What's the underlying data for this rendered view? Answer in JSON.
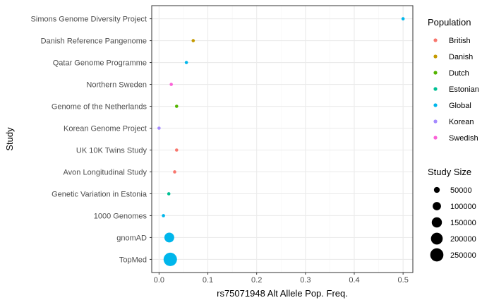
{
  "chart_data": {
    "type": "scatter",
    "xlabel": "rs75071948 Alt Allele Pop. Freq.",
    "ylabel": "Study",
    "xlim": [
      -0.015,
      0.52
    ],
    "x_ticks": [
      "0.0",
      "0.1",
      "0.2",
      "0.3",
      "0.4",
      "0.5"
    ],
    "x_tick_values": [
      0.0,
      0.1,
      0.2,
      0.3,
      0.4,
      0.5
    ],
    "grid": true,
    "legend_position": "right",
    "categories": [
      "Simons Genome Diversity Project",
      "Danish Reference Pangenome",
      "Qatar Genome Programme",
      "Northern Sweden",
      "Genome of the Netherlands",
      "Korean Genome Project",
      "UK 10K Twins Study",
      "Avon Longitudinal Study",
      "Genetic Variation in Estonia",
      "1000 Genomes",
      "gnomAD",
      "TopMed"
    ],
    "points": [
      {
        "study": "Simons Genome Diversity Project",
        "freq": 0.5,
        "population": "Global",
        "size": 300
      },
      {
        "study": "Danish Reference Pangenome",
        "freq": 0.07,
        "population": "Danish",
        "size": 2000
      },
      {
        "study": "Qatar Genome Programme",
        "freq": 0.056,
        "population": "Global",
        "size": 1500
      },
      {
        "study": "Northern Sweden",
        "freq": 0.025,
        "population": "Swedish",
        "size": 2000
      },
      {
        "study": "Genome of the Netherlands",
        "freq": 0.036,
        "population": "Dutch",
        "size": 5000
      },
      {
        "study": "Korean Genome Project",
        "freq": 0.0,
        "population": "Korean",
        "size": 3000
      },
      {
        "study": "UK 10K Twins Study",
        "freq": 0.036,
        "population": "British",
        "size": 7500
      },
      {
        "study": "Avon Longitudinal Study",
        "freq": 0.032,
        "population": "British",
        "size": 7500
      },
      {
        "study": "Genetic Variation in Estonia",
        "freq": 0.02,
        "population": "Estonian",
        "size": 10000
      },
      {
        "study": "1000 Genomes",
        "freq": 0.009,
        "population": "Global",
        "size": 15000
      },
      {
        "study": "gnomAD",
        "freq": 0.021,
        "population": "Global",
        "size": 140000
      },
      {
        "study": "TopMed",
        "freq": 0.023,
        "population": "Global",
        "size": 260000
      }
    ],
    "legend_population": {
      "title": "Population",
      "entries": [
        {
          "label": "British",
          "color": "#F8766D"
        },
        {
          "label": "Danish",
          "color": "#C49A00"
        },
        {
          "label": "Dutch",
          "color": "#53B400"
        },
        {
          "label": "Estonian",
          "color": "#00C094"
        },
        {
          "label": "Global",
          "color": "#00B6EB"
        },
        {
          "label": "Korean",
          "color": "#A58AFF"
        },
        {
          "label": "Swedish",
          "color": "#FB61D7"
        }
      ]
    },
    "legend_size": {
      "title": "Study Size",
      "entries": [
        {
          "label": "50000",
          "value": 50000
        },
        {
          "label": "100000",
          "value": 100000
        },
        {
          "label": "150000",
          "value": 150000
        },
        {
          "label": "200000",
          "value": 200000
        },
        {
          "label": "250000",
          "value": 250000
        }
      ]
    },
    "size_range": [
      0,
      260000
    ],
    "colors": {
      "panel_border": "#333333",
      "grid_major": "#ebebeb",
      "grid_minor": "#f5f5f5",
      "tick": "#333333"
    }
  }
}
